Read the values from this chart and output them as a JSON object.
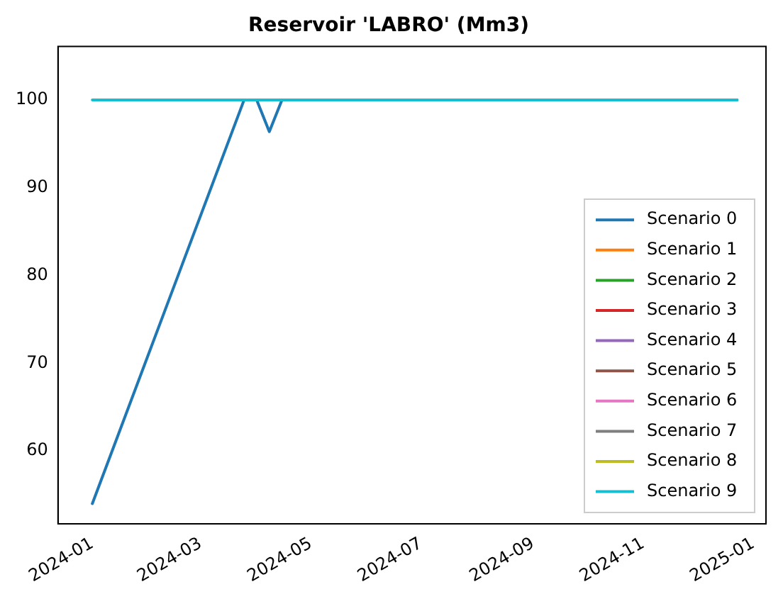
{
  "chart_data": {
    "type": "line",
    "title": "Reservoir 'LABRO' (Mm3)",
    "xlim": [
      "2023-12-13",
      "2025-01-08"
    ],
    "xticks": [
      "2024-01",
      "2024-03",
      "2024-05",
      "2024-07",
      "2024-09",
      "2024-11",
      "2025-01"
    ],
    "ylim": [
      51.7,
      106.1
    ],
    "yticks": [
      60,
      70,
      80,
      90,
      100
    ],
    "grid": false,
    "legend": "bottom right",
    "marker": "none",
    "line_style": "solid",
    "series": [
      {
        "name": "Scenario 0",
        "color": "#1f77b4",
        "x": [
          "2024-01-01",
          "2024-03-25",
          "2024-04-01",
          "2024-04-08",
          "2024-04-15",
          "2024-12-23"
        ],
        "values": [
          54,
          100,
          100,
          96.4,
          100,
          100
        ]
      },
      {
        "name": "Scenario 1",
        "color": "#ff7f0e"
      },
      {
        "name": "Scenario 2",
        "color": "#2ca02c"
      },
      {
        "name": "Scenario 3",
        "color": "#d62728"
      },
      {
        "name": "Scenario 4",
        "color": "#9467bd"
      },
      {
        "name": "Scenario 5",
        "color": "#8c564b"
      },
      {
        "name": "Scenario 6",
        "color": "#e377c2"
      },
      {
        "name": "Scenario 7",
        "color": "#7f7f7f"
      },
      {
        "name": "Scenario 8",
        "color": "#bcbd22"
      },
      {
        "name": "Scenario 9",
        "color": "#17becf",
        "x": [
          "2024-01-01",
          "2024-12-23"
        ],
        "values": [
          100,
          100
        ]
      }
    ]
  }
}
